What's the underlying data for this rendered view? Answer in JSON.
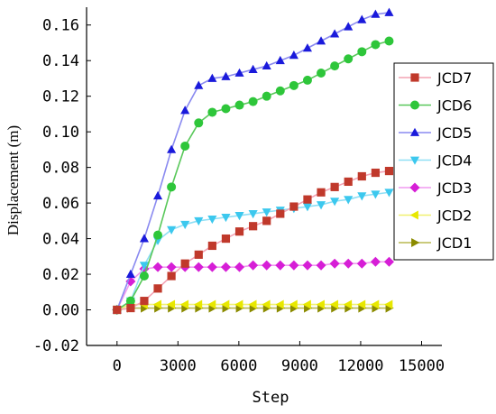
{
  "chart_data": {
    "type": "line",
    "title": "",
    "xlabel": "Step",
    "ylabel": "Displacement (m)",
    "xlim": [
      -1500,
      16000
    ],
    "ylim": [
      -0.02,
      0.17
    ],
    "xticks": [
      0,
      3000,
      6000,
      9000,
      12000,
      15000
    ],
    "xtick_labels": [
      "0",
      "3000",
      "6000",
      "9000",
      "12000",
      "15000"
    ],
    "yticks": [
      -0.02,
      0.0,
      0.02,
      0.04,
      0.06,
      0.08,
      0.1,
      0.12,
      0.14,
      0.16
    ],
    "ytick_labels": [
      "-0.02",
      "0.00",
      "0.02",
      "0.04",
      "0.06",
      "0.08",
      "0.10",
      "0.12",
      "0.14",
      "0.16"
    ],
    "grid": false,
    "legend_position": "right",
    "x": [
      0,
      670,
      1340,
      2010,
      2680,
      3350,
      4020,
      4690,
      5360,
      6030,
      6700,
      7370,
      8040,
      8710,
      9380,
      10050,
      10720,
      11390,
      12060,
      12730,
      13400
    ],
    "series": [
      {
        "name": "JCD7",
        "marker": "square",
        "color": "#c0392b",
        "line_color": "#f4a3b4",
        "values": [
          0.0,
          0.001,
          0.005,
          0.012,
          0.019,
          0.026,
          0.031,
          0.036,
          0.04,
          0.044,
          0.047,
          0.05,
          0.054,
          0.058,
          0.062,
          0.066,
          0.069,
          0.072,
          0.075,
          0.077,
          0.078
        ]
      },
      {
        "name": "JCD6",
        "marker": "circle",
        "color": "#2ec63a",
        "line_color": "#59c85a",
        "values": [
          0.0,
          0.005,
          0.019,
          0.042,
          0.069,
          0.092,
          0.105,
          0.111,
          0.113,
          0.115,
          0.117,
          0.12,
          0.123,
          0.126,
          0.129,
          0.133,
          0.137,
          0.141,
          0.145,
          0.149,
          0.151
        ]
      },
      {
        "name": "JCD5",
        "marker": "triangle-up",
        "color": "#1a1adb",
        "line_color": "#8a8af0",
        "values": [
          0.0,
          0.02,
          0.04,
          0.064,
          0.09,
          0.112,
          0.126,
          0.13,
          0.131,
          0.133,
          0.135,
          0.137,
          0.14,
          0.143,
          0.147,
          0.151,
          0.155,
          0.159,
          0.163,
          0.166,
          0.167
        ]
      },
      {
        "name": "JCD4",
        "marker": "triangle-down",
        "color": "#3cc8ee",
        "line_color": "#8fdff5",
        "values": [
          0.0,
          0.005,
          0.025,
          0.039,
          0.045,
          0.048,
          0.05,
          0.051,
          0.052,
          0.053,
          0.054,
          0.055,
          0.056,
          0.057,
          0.058,
          0.059,
          0.061,
          0.062,
          0.064,
          0.065,
          0.066
        ]
      },
      {
        "name": "JCD3",
        "marker": "diamond",
        "color": "#d61ed6",
        "line_color": "#f09af0",
        "values": [
          0.0,
          0.016,
          0.023,
          0.024,
          0.024,
          0.024,
          0.024,
          0.024,
          0.024,
          0.024,
          0.025,
          0.025,
          0.025,
          0.025,
          0.025,
          0.025,
          0.026,
          0.026,
          0.026,
          0.027,
          0.027
        ]
      },
      {
        "name": "JCD2",
        "marker": "triangle-left",
        "color": "#e8e800",
        "line_color": "#f0f070",
        "values": [
          0.0,
          0.003,
          0.003,
          0.003,
          0.003,
          0.003,
          0.003,
          0.003,
          0.003,
          0.003,
          0.003,
          0.003,
          0.003,
          0.003,
          0.003,
          0.003,
          0.003,
          0.003,
          0.003,
          0.003,
          0.003
        ]
      },
      {
        "name": "JCD1",
        "marker": "triangle-right",
        "color": "#8b8b00",
        "line_color": "#b8b850",
        "values": [
          0.0,
          0.001,
          0.001,
          0.001,
          0.001,
          0.001,
          0.001,
          0.001,
          0.001,
          0.001,
          0.001,
          0.001,
          0.001,
          0.001,
          0.001,
          0.001,
          0.001,
          0.001,
          0.001,
          0.001,
          0.001
        ]
      }
    ]
  }
}
